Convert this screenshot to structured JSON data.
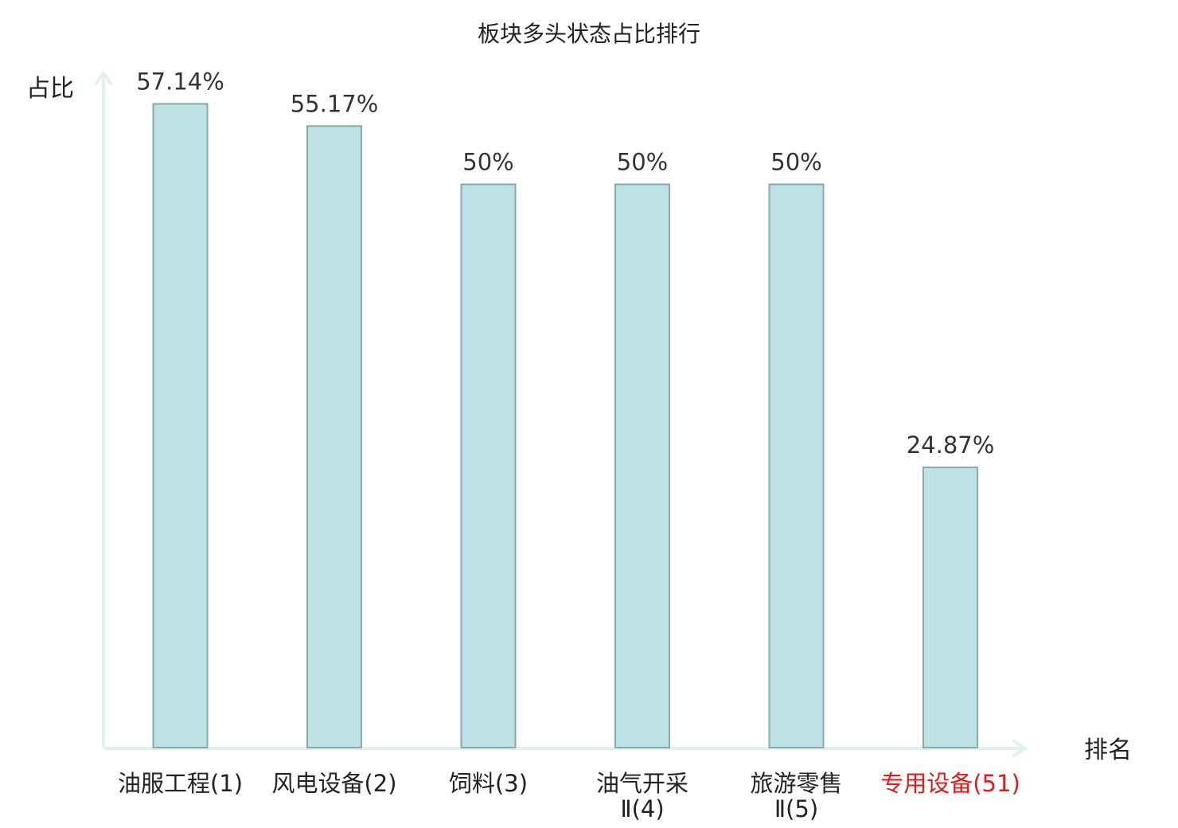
{
  "chart_data": {
    "type": "bar",
    "title": "板块多头状态占比排行",
    "ylabel": "占比",
    "xlabel": "排名",
    "ylim": [
      0,
      60
    ],
    "categories": [
      {
        "name": "油服工程",
        "rank": "(1)",
        "highlight": false
      },
      {
        "name": "风电设备",
        "rank": "(2)",
        "highlight": false
      },
      {
        "name": "饲料",
        "rank": "(3)",
        "highlight": false
      },
      {
        "name": "油气开采Ⅱ",
        "rank": "(4)",
        "highlight": false
      },
      {
        "name": "旅游零售Ⅱ",
        "rank": "(5)",
        "highlight": false
      },
      {
        "name": "专用设备",
        "rank": "(51)",
        "highlight": true
      }
    ],
    "values": [
      57.14,
      55.17,
      50,
      50,
      50,
      24.87
    ],
    "value_labels": [
      "57.14%",
      "55.17%",
      "50%",
      "50%",
      "50%",
      "24.87%"
    ],
    "colors": {
      "bar": "#bde1e4",
      "bar_stroke": "#86a9ab",
      "axis": "#e0f1ee",
      "highlight": "#e01b1b"
    }
  }
}
